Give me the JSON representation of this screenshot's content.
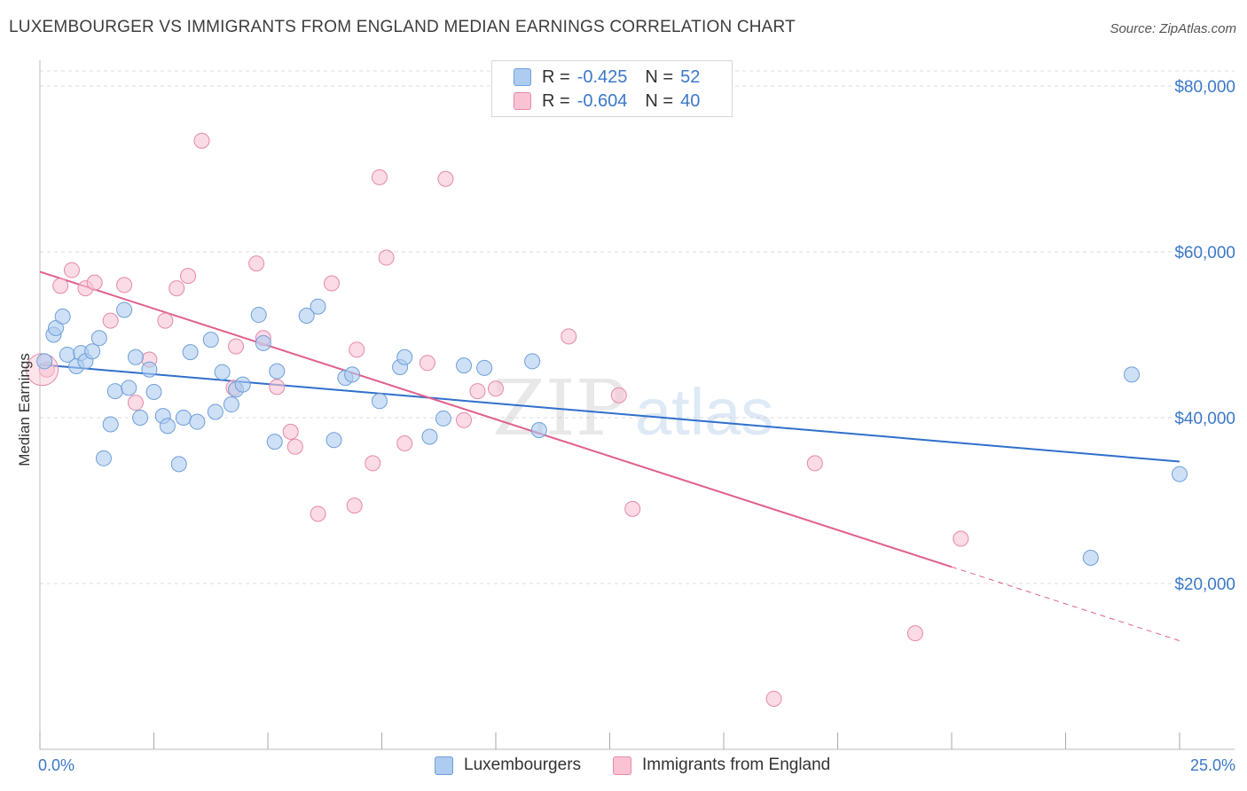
{
  "header": {
    "title": "LUXEMBOURGER VS IMMIGRANTS FROM ENGLAND MEDIAN EARNINGS CORRELATION CHART",
    "source": "Source: ZipAtlas.com"
  },
  "watermark": {
    "zip": "ZIP",
    "atlas": "atlas"
  },
  "legend": {
    "rows": [
      {
        "r_label": "R =",
        "r_value": "-0.425",
        "n_label": "N =",
        "n_value": "52",
        "color": "#aecbf0",
        "border": "#6f9fd8"
      },
      {
        "r_label": "R =",
        "r_value": "-0.604",
        "n_label": "N =",
        "n_value": "40",
        "color": "#f9c3d3",
        "border": "#e58aa8"
      }
    ]
  },
  "bottom_legend": {
    "series1": "Luxembourgers",
    "series2": "Immigrants from England"
  },
  "colors": {
    "blue_fill": "#aecbf0",
    "blue_stroke": "#6f9fd8",
    "blue_line": "#2f6fcc",
    "pink_fill": "#f9c3d3",
    "pink_stroke": "#e58aa8",
    "pink_line": "#e0608b",
    "tick_text": "#3b78c9",
    "grid": "#dddddd"
  },
  "chart_data": {
    "type": "scatter",
    "title": "LUXEMBOURGER VS IMMIGRANTS FROM ENGLAND MEDIAN EARNINGS CORRELATION CHART",
    "xlabel": "",
    "ylabel": "Median Earnings",
    "xlim": [
      0,
      25
    ],
    "ylim": [
      0,
      80000
    ],
    "x_tick_labels": [
      "0.0%",
      "25.0%"
    ],
    "y_ticks": [
      20000,
      40000,
      60000,
      80000
    ],
    "y_tick_labels": [
      "$20,000",
      "$40,000",
      "$60,000",
      "$80,000"
    ],
    "grid": true,
    "legend_position": "top-center",
    "series": [
      {
        "name": "Luxembourgers",
        "r": -0.425,
        "n": 52,
        "trend": {
          "x": [
            0,
            25
          ],
          "y": [
            46400,
            34700
          ]
        },
        "points": [
          [
            0.1,
            46800
          ],
          [
            0.3,
            50000
          ],
          [
            0.35,
            50800
          ],
          [
            0.5,
            52200
          ],
          [
            0.6,
            47600
          ],
          [
            0.8,
            46200
          ],
          [
            0.9,
            47800
          ],
          [
            1.0,
            46800
          ],
          [
            1.15,
            48000
          ],
          [
            1.3,
            49600
          ],
          [
            1.4,
            35100
          ],
          [
            1.55,
            39200
          ],
          [
            1.65,
            43200
          ],
          [
            1.85,
            53000
          ],
          [
            1.95,
            43600
          ],
          [
            2.1,
            47300
          ],
          [
            2.2,
            40000
          ],
          [
            2.4,
            45800
          ],
          [
            2.5,
            43100
          ],
          [
            2.7,
            40200
          ],
          [
            2.8,
            39000
          ],
          [
            3.05,
            34400
          ],
          [
            3.15,
            40000
          ],
          [
            3.3,
            47900
          ],
          [
            3.45,
            39500
          ],
          [
            3.75,
            49400
          ],
          [
            3.85,
            40700
          ],
          [
            4.0,
            45500
          ],
          [
            4.2,
            41600
          ],
          [
            4.3,
            43400
          ],
          [
            4.45,
            44000
          ],
          [
            4.8,
            52400
          ],
          [
            4.9,
            49000
          ],
          [
            5.15,
            37100
          ],
          [
            5.2,
            45600
          ],
          [
            5.85,
            52300
          ],
          [
            6.1,
            53400
          ],
          [
            6.45,
            37300
          ],
          [
            6.7,
            44800
          ],
          [
            6.85,
            45200
          ],
          [
            7.45,
            42000
          ],
          [
            7.9,
            46100
          ],
          [
            8.0,
            47300
          ],
          [
            8.55,
            37700
          ],
          [
            8.85,
            39900
          ],
          [
            9.3,
            46300
          ],
          [
            9.75,
            46000
          ],
          [
            10.8,
            46800
          ],
          [
            10.95,
            38500
          ],
          [
            23.05,
            23100
          ],
          [
            23.95,
            45200
          ],
          [
            25.0,
            33200
          ]
        ]
      },
      {
        "name": "Immigrants from England",
        "r": -0.604,
        "n": 40,
        "trend": {
          "x": [
            0,
            20
          ],
          "y": [
            57600,
            22000
          ]
        },
        "trend_dashed": {
          "x": [
            20,
            25
          ],
          "y": [
            22000,
            13100
          ]
        },
        "points": [
          [
            0.15,
            45800
          ],
          [
            0.45,
            55900
          ],
          [
            0.7,
            57800
          ],
          [
            1.0,
            55600
          ],
          [
            1.2,
            56300
          ],
          [
            1.55,
            51700
          ],
          [
            1.85,
            56000
          ],
          [
            2.1,
            41800
          ],
          [
            2.4,
            47000
          ],
          [
            2.75,
            51700
          ],
          [
            3.0,
            55600
          ],
          [
            3.25,
            57100
          ],
          [
            3.55,
            73400
          ],
          [
            4.25,
            43600
          ],
          [
            4.3,
            48600
          ],
          [
            4.75,
            58600
          ],
          [
            4.9,
            49600
          ],
          [
            5.2,
            43700
          ],
          [
            5.5,
            38300
          ],
          [
            5.6,
            36500
          ],
          [
            6.1,
            28400
          ],
          [
            6.4,
            56200
          ],
          [
            6.9,
            29400
          ],
          [
            6.95,
            48200
          ],
          [
            7.3,
            34500
          ],
          [
            7.45,
            69000
          ],
          [
            7.6,
            59300
          ],
          [
            8.0,
            36900
          ],
          [
            8.5,
            46600
          ],
          [
            8.9,
            68800
          ],
          [
            9.3,
            39700
          ],
          [
            9.6,
            43200
          ],
          [
            10.0,
            43500
          ],
          [
            11.6,
            49800
          ],
          [
            12.7,
            42700
          ],
          [
            13.0,
            29000
          ],
          [
            16.1,
            6100
          ],
          [
            17.0,
            34500
          ],
          [
            19.2,
            14000
          ],
          [
            20.2,
            25400
          ]
        ]
      }
    ]
  }
}
